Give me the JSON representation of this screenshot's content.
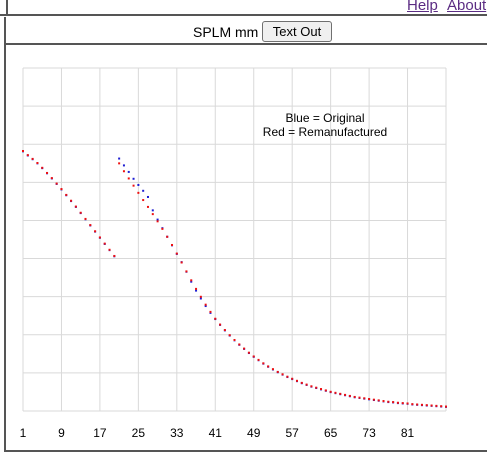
{
  "topbar": {
    "help_label": "Help",
    "about_label": "About"
  },
  "toolbar": {
    "units_label": "SPLM mm",
    "text_out_label": "Text Out"
  },
  "colors": {
    "original": "#1e1ed2",
    "remanufactured": "#ee1111",
    "grid": "#d9d9d9",
    "frame": "#555555",
    "link": "#5b2c83"
  },
  "chart_data": {
    "type": "scatter",
    "title": "",
    "xlabel": "",
    "ylabel": "",
    "x_ticks": [
      1,
      9,
      17,
      25,
      33,
      41,
      49,
      57,
      65,
      73,
      81
    ],
    "xlim": [
      1,
      89
    ],
    "ylim": [
      0,
      10
    ],
    "y_gridlines": 9,
    "y_tick_labels": false,
    "grid": true,
    "annotations": [
      "Blue = Original",
      "Red = Remanufactured"
    ],
    "series": [
      {
        "name": "Original",
        "color": "#1e1ed2",
        "x": [
          1,
          2,
          3,
          4,
          5,
          6,
          7,
          8,
          9,
          10,
          11,
          12,
          13,
          14,
          15,
          16,
          17,
          18,
          19,
          20,
          21,
          22,
          23,
          24,
          25,
          26,
          27,
          28,
          29,
          30,
          31,
          32,
          33,
          34,
          35,
          36,
          37,
          38,
          39,
          40,
          41,
          42,
          43,
          44,
          45,
          46,
          47,
          48,
          49,
          50,
          51,
          52,
          53,
          54,
          55,
          56,
          57,
          58,
          59,
          60,
          61,
          62,
          63,
          64,
          65,
          66,
          67,
          68,
          69,
          70,
          71,
          72,
          73,
          74,
          75,
          76,
          77,
          78,
          79,
          80,
          81,
          82,
          83,
          84,
          85,
          86,
          87,
          88,
          89
        ],
        "y": [
          7.57,
          7.45,
          7.34,
          7.22,
          7.08,
          6.93,
          6.78,
          6.62,
          6.46,
          6.29,
          6.12,
          5.95,
          5.77,
          5.59,
          5.41,
          5.23,
          5.05,
          4.87,
          4.69,
          4.51,
          7.36,
          7.16,
          6.97,
          6.77,
          6.59,
          6.42,
          6.24,
          5.85,
          5.58,
          5.33,
          5.08,
          4.83,
          4.58,
          4.34,
          4.06,
          3.77,
          3.51,
          3.28,
          3.06,
          2.86,
          2.68,
          2.51,
          2.35,
          2.2,
          2.06,
          1.93,
          1.81,
          1.69,
          1.58,
          1.48,
          1.38,
          1.29,
          1.21,
          1.13,
          1.06,
          0.99,
          0.93,
          0.87,
          0.81,
          0.76,
          0.71,
          0.67,
          0.63,
          0.59,
          0.55,
          0.52,
          0.49,
          0.46,
          0.43,
          0.4,
          0.38,
          0.36,
          0.34,
          0.32,
          0.3,
          0.28,
          0.26,
          0.25,
          0.23,
          0.22,
          0.21,
          0.19,
          0.18,
          0.17,
          0.16,
          0.15,
          0.14,
          0.13,
          0.12
        ]
      },
      {
        "name": "Remanufactured",
        "color": "#ee1111",
        "x": [
          1,
          2,
          3,
          4,
          5,
          6,
          7,
          8,
          9,
          10,
          11,
          12,
          13,
          14,
          15,
          16,
          17,
          18,
          19,
          20,
          21,
          22,
          23,
          24,
          25,
          26,
          27,
          28,
          29,
          30,
          31,
          32,
          33,
          34,
          35,
          36,
          37,
          38,
          39,
          40,
          41,
          42,
          43,
          44,
          45,
          46,
          47,
          48,
          49,
          50,
          51,
          52,
          53,
          54,
          55,
          56,
          57,
          58,
          59,
          60,
          61,
          62,
          63,
          64,
          65,
          66,
          67,
          68,
          69,
          70,
          71,
          72,
          73,
          74,
          75,
          76,
          77,
          78,
          79,
          80,
          81,
          82,
          83,
          84,
          85,
          86,
          87,
          88,
          89
        ],
        "y": [
          7.58,
          7.46,
          7.35,
          7.23,
          7.09,
          6.94,
          6.79,
          6.63,
          6.47,
          6.3,
          6.13,
          5.96,
          5.78,
          5.6,
          5.42,
          5.24,
          5.06,
          4.88,
          4.7,
          4.52,
          7.22,
          6.99,
          6.78,
          6.57,
          6.36,
          6.15,
          5.95,
          5.74,
          5.53,
          5.31,
          5.08,
          4.84,
          4.59,
          4.33,
          4.07,
          3.81,
          3.56,
          3.33,
          3.1,
          2.89,
          2.69,
          2.52,
          2.36,
          2.21,
          2.07,
          1.94,
          1.82,
          1.7,
          1.59,
          1.49,
          1.39,
          1.3,
          1.22,
          1.14,
          1.07,
          1.0,
          0.94,
          0.88,
          0.82,
          0.77,
          0.72,
          0.68,
          0.64,
          0.6,
          0.56,
          0.53,
          0.5,
          0.47,
          0.44,
          0.41,
          0.39,
          0.37,
          0.35,
          0.33,
          0.31,
          0.29,
          0.27,
          0.26,
          0.24,
          0.23,
          0.22,
          0.2,
          0.19,
          0.18,
          0.17,
          0.16,
          0.15,
          0.14,
          0.13
        ]
      }
    ]
  }
}
